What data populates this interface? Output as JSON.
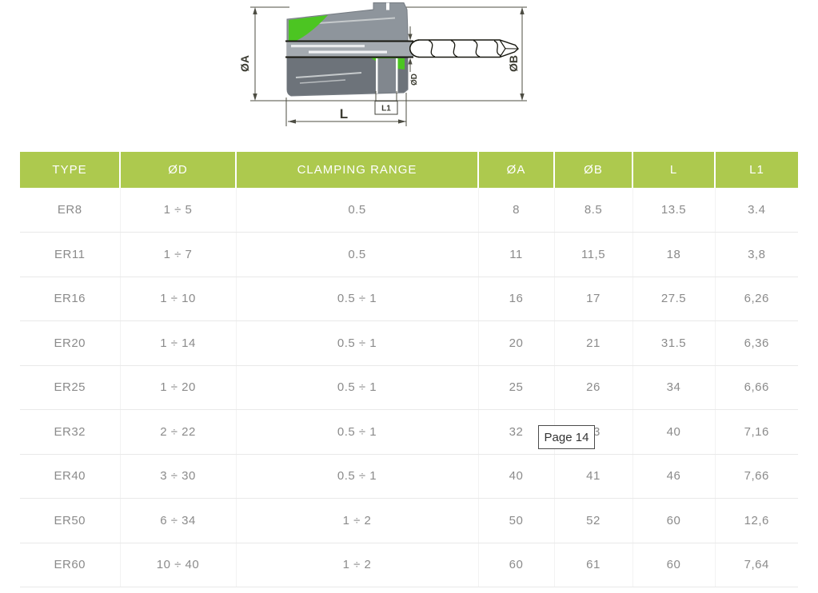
{
  "diagram": {
    "dim_labels": {
      "dia_a": "ØA",
      "dia_b": "ØB",
      "dia_d": "ØD",
      "length": "L",
      "length1": "L1"
    },
    "colors": {
      "accent_green": "#4cc522",
      "body_gray": "#8e959c",
      "body_dark": "#6d737a",
      "bore_gray": "#a4aab0",
      "line_dark": "#17170f",
      "dim_line": "#4c4c42"
    }
  },
  "table": {
    "header_bg": "#adc94e",
    "headers": [
      "TYPE",
      "ØD",
      "CLAMPING RANGE",
      "ØA",
      "ØB",
      "L",
      "L1"
    ],
    "rows": [
      [
        "ER8",
        "1 ÷ 5",
        "0.5",
        "8",
        "8.5",
        "13.5",
        "3.4"
      ],
      [
        "ER11",
        "1 ÷ 7",
        "0.5",
        "11",
        "11,5",
        "18",
        "3,8"
      ],
      [
        "ER16",
        "1 ÷ 10",
        "0.5 ÷ 1",
        "16",
        "17",
        "27.5",
        "6,26"
      ],
      [
        "ER20",
        "1 ÷ 14",
        "0.5 ÷ 1",
        "20",
        "21",
        "31.5",
        "6,36"
      ],
      [
        "ER25",
        "1 ÷ 20",
        "0.5 ÷ 1",
        "25",
        "26",
        "34",
        "6,66"
      ],
      [
        "ER32",
        "2 ÷ 22",
        "0.5 ÷ 1",
        "32",
        "33",
        "40",
        "7,16"
      ],
      [
        "ER40",
        "3 ÷ 30",
        "0.5 ÷ 1",
        "40",
        "41",
        "46",
        "7,66"
      ],
      [
        "ER50",
        "6 ÷ 34",
        "1 ÷ 2",
        "50",
        "52",
        "60",
        "12,6"
      ],
      [
        "ER60",
        "10 ÷ 40",
        "1 ÷ 2",
        "60",
        "61",
        "60",
        "7,64"
      ]
    ]
  },
  "tooltip": {
    "label": "Page 14"
  }
}
